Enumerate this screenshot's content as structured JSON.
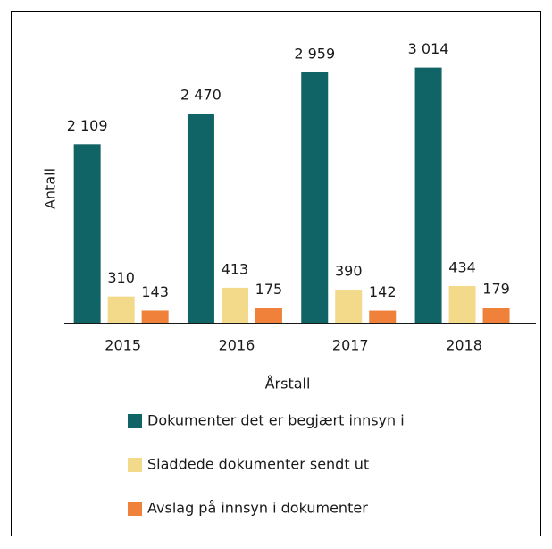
{
  "chart_data": {
    "type": "bar",
    "x_label": "Årstall",
    "y_label": "Antall",
    "categories": [
      "2015",
      "2016",
      "2017",
      "2018"
    ],
    "series": [
      {
        "name": "Dokumenter det er begjært innsyn i",
        "color": "#116466",
        "values": [
          2109,
          2470,
          2959,
          3014
        ],
        "value_labels": [
          "2 109",
          "2 470",
          "2 959",
          "3 014"
        ]
      },
      {
        "name": "Sladdede dokumenter sendt ut",
        "color": "#f3d98a",
        "values": [
          310,
          413,
          390,
          434
        ]
      },
      {
        "name": "Avslag på innsyn i dokumenter",
        "color": "#f0813a",
        "values": [
          143,
          175,
          142,
          179
        ]
      }
    ],
    "ylim": [
      0,
      3200
    ]
  }
}
